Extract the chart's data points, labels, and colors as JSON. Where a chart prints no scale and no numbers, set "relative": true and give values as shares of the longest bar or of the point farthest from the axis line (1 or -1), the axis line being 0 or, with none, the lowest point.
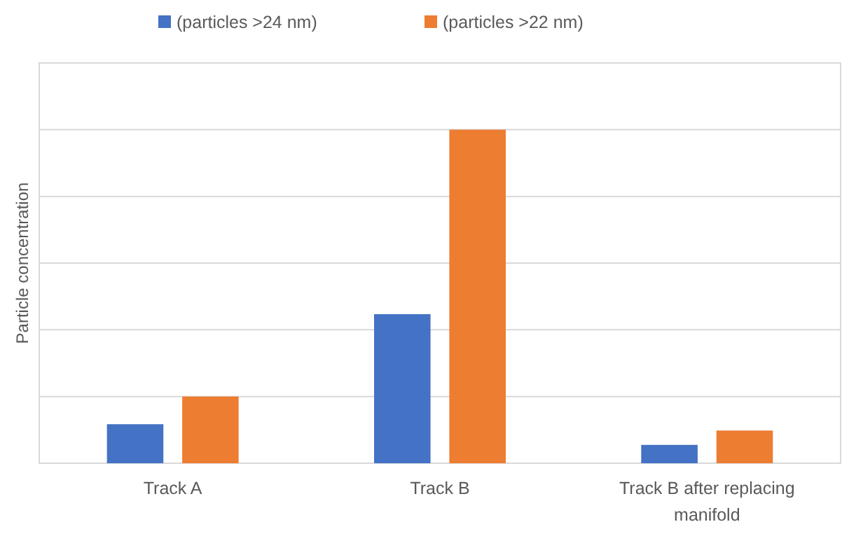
{
  "chart_data": {
    "type": "bar",
    "relative": true,
    "ylabel": "Particle concentration",
    "categories": [
      "Track A",
      "Track B",
      "Track B after replacing manifold"
    ],
    "series": [
      {
        "name": "(particles >24 nm)",
        "color": "#4472c4",
        "values": [
          0.117,
          0.447,
          0.055
        ]
      },
      {
        "name": "(particles >22 nm)",
        "color": "#ed7d31",
        "values": [
          0.2,
          1,
          0.098
        ]
      }
    ],
    "grid": "y",
    "legend": "top"
  }
}
